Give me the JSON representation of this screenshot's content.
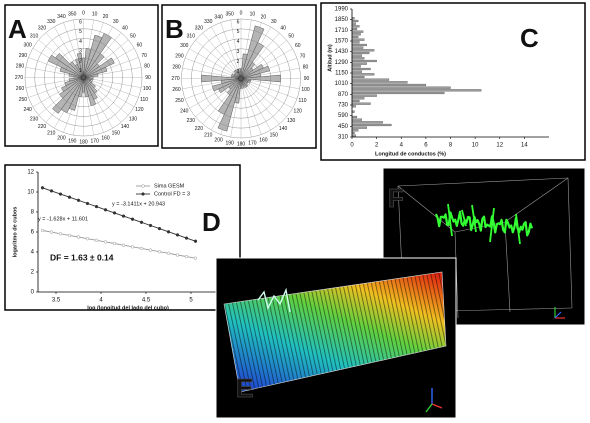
{
  "chart_data": [
    {
      "type": "rose",
      "label": "A",
      "color": "#b4b4b4",
      "angle_ticks": [
        0,
        10,
        20,
        30,
        40,
        50,
        60,
        70,
        80,
        90,
        100,
        110,
        120,
        130,
        140,
        150,
        160,
        170,
        180,
        190,
        200,
        210,
        220,
        230,
        240,
        250,
        260,
        270,
        280,
        290,
        300,
        310,
        320,
        330,
        340,
        350
      ],
      "rlim": [
        0,
        6
      ],
      "rticks": [
        1,
        2,
        3,
        4,
        5,
        6
      ],
      "values": [
        2,
        3,
        4.5,
        5,
        3,
        2,
        3.5,
        2.5,
        1.5,
        1,
        1,
        0.8,
        1,
        1.5,
        2,
        2.5,
        3,
        2,
        1.5,
        2,
        3.5,
        4,
        4.5,
        3,
        2.5,
        2,
        1.5,
        1,
        1.5,
        2.5,
        4,
        3.5,
        2,
        1.5,
        2,
        2.5
      ]
    },
    {
      "type": "rose",
      "label": "B",
      "color": "#b4b4b4",
      "angle_ticks": [
        0,
        10,
        20,
        30,
        40,
        50,
        60,
        70,
        80,
        90,
        100,
        110,
        120,
        130,
        140,
        150,
        160,
        170,
        180,
        190,
        200,
        210,
        220,
        230,
        240,
        250,
        260,
        270,
        280,
        290,
        300,
        310,
        320,
        330,
        340,
        350
      ],
      "rlim": [
        0,
        6
      ],
      "rticks": [
        1,
        2,
        3,
        4,
        5,
        6
      ],
      "values": [
        1,
        2.5,
        5.5,
        4,
        2,
        1.5,
        2.5,
        3,
        2,
        4,
        1,
        1,
        0.8,
        0.8,
        1,
        1,
        0.8,
        1,
        1,
        2.5,
        5.5,
        4,
        2,
        1.5,
        2.5,
        3,
        2,
        4,
        1,
        1,
        0.8,
        0.8,
        1,
        1,
        0.8,
        1
      ]
    },
    {
      "type": "histogram",
      "label": "C",
      "orientation": "horizontal",
      "color": "#9c9c9c",
      "ylabel": "Altitud (m)",
      "xlabel": "Longitud de conductos (%)",
      "bins": [
        310,
        345,
        380,
        415,
        450,
        485,
        520,
        555,
        590,
        625,
        660,
        695,
        730,
        765,
        800,
        835,
        870,
        905,
        940,
        975,
        1010,
        1045,
        1080,
        1115,
        1150,
        1185,
        1220,
        1255,
        1290,
        1325,
        1360,
        1395,
        1430,
        1465,
        1500,
        1535,
        1570,
        1605,
        1640,
        1675,
        1710,
        1745,
        1780,
        1815,
        1850,
        1885,
        1920,
        1955,
        1990
      ],
      "values": [
        0.3,
        0.2,
        0.5,
        1.2,
        3.2,
        2.5,
        0.8,
        0.4,
        0,
        0.2,
        0,
        0.3,
        1.5,
        0.6,
        1,
        2,
        7.5,
        10.5,
        8,
        6,
        4.5,
        3,
        1,
        1.8,
        0.8,
        1.5,
        0.7,
        1.2,
        2,
        1,
        0.8,
        1.4,
        1.8,
        0.9,
        1.2,
        0.6,
        1,
        0.5,
        0.7,
        0.9,
        0.4,
        0.6,
        0.3,
        0.5,
        0.2,
        0,
        0,
        0
      ],
      "xlim": [
        0,
        16
      ],
      "xticks": [
        0,
        2,
        4,
        6,
        8,
        10,
        12,
        14
      ],
      "ylim": [
        310,
        1990
      ],
      "yticks": [
        310,
        450,
        590,
        730,
        870,
        1010,
        1150,
        1290,
        1430,
        1570,
        1710,
        1850,
        1990
      ]
    },
    {
      "type": "scatter",
      "label": "D",
      "xlabel": "log (longitud del lado del cubo)",
      "ylabel": "logaritmo de cubos",
      "x": [
        3.35,
        3.45,
        3.55,
        3.65,
        3.75,
        3.85,
        3.95,
        4.05,
        4.15,
        4.25,
        4.35,
        4.45,
        4.55,
        4.65,
        4.75,
        4.85,
        4.95,
        5.05
      ],
      "series": [
        {
          "name": "Sima GESM",
          "color": "#9a9a9a",
          "values": [
            6.15,
            5.99,
            5.82,
            5.66,
            5.5,
            5.33,
            5.17,
            5.01,
            4.85,
            4.68,
            4.52,
            4.36,
            4.19,
            4.03,
            3.87,
            3.7,
            3.54,
            3.38
          ]
        },
        {
          "name": "Control FD = 3",
          "color": "#333333",
          "values": [
            10.42,
            10.11,
            9.79,
            9.48,
            9.17,
            8.85,
            8.54,
            8.22,
            7.91,
            7.59,
            7.28,
            6.97,
            6.65,
            6.34,
            6.02,
            5.71,
            5.39,
            5.08
          ]
        }
      ],
      "annotations": [
        "y = -3.1411x + 20.943",
        "y = -1.628x + 11.601",
        "DF = 1.63 ± 0.14"
      ],
      "xlim": [
        3.3,
        5.3
      ],
      "xticks": [
        3.5,
        4,
        4.5,
        5
      ],
      "ylim": [
        0,
        12
      ],
      "yticks": [
        0,
        2,
        4,
        6,
        8,
        10,
        12
      ],
      "legend": "upper right"
    },
    {
      "type": "image",
      "label": "E"
    },
    {
      "type": "image",
      "label": "F"
    }
  ]
}
